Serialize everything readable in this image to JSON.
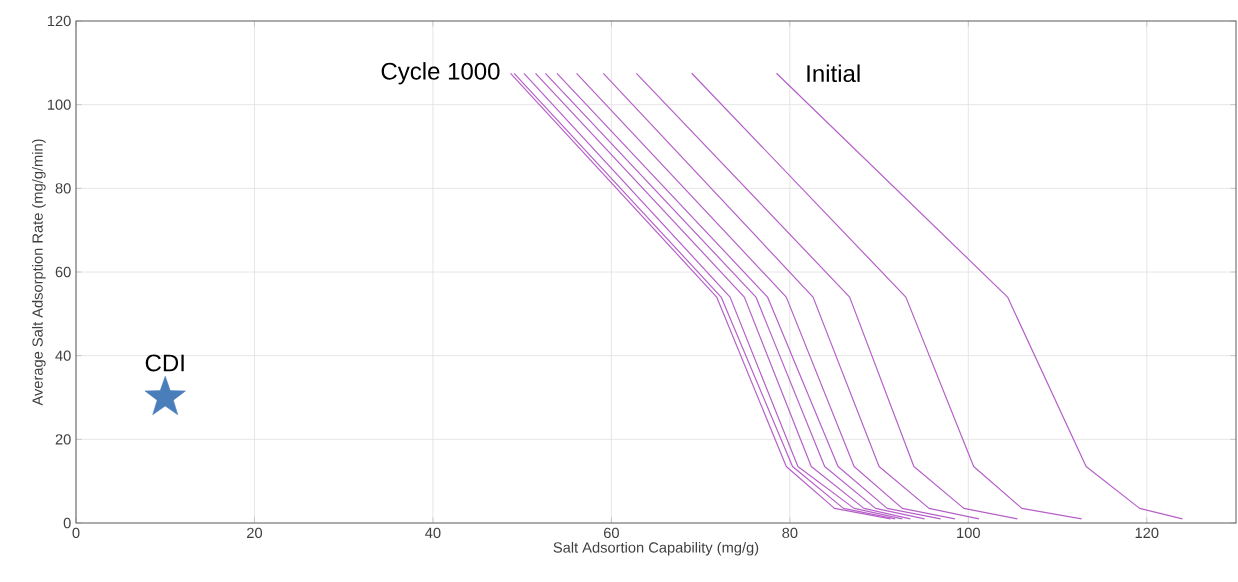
{
  "chart_data": {
    "type": "line",
    "xlabel": "Salt Adsortion Capability (mg/g)",
    "ylabel": "Average Salt Adsorption Rate (mg/g/min)",
    "xlim": [
      0,
      130
    ],
    "ylim": [
      0,
      120
    ],
    "xticks": [
      0,
      20,
      40,
      60,
      80,
      100,
      120
    ],
    "yticks": [
      0,
      20,
      40,
      60,
      80,
      100,
      120
    ],
    "grid": true,
    "annotations": [
      {
        "text": "Cycle 1000",
        "x": 48.7,
        "y": 107.5
      },
      {
        "text": "Initial",
        "x": 78.5,
        "y": 107.5
      }
    ],
    "series": [
      {
        "color": "#b660c8",
        "x": [
          48.7,
          71.8,
          79.6,
          85.0,
          91.3
        ],
        "values": [
          107.5,
          54,
          13.5,
          3.5,
          1
        ]
      },
      {
        "color": "#b660c8",
        "x": [
          49.1,
          72.3,
          80.3,
          86.0,
          91.8
        ],
        "values": [
          107.5,
          54,
          13.5,
          3.5,
          1
        ]
      },
      {
        "color": "#b660c8",
        "x": [
          50.2,
          73.3,
          80.9,
          87.2,
          92.6
        ],
        "values": [
          107.5,
          54,
          13.5,
          3.5,
          1
        ]
      },
      {
        "color": "#b660c8",
        "x": [
          51.5,
          74.9,
          82.4,
          88.3,
          93.5
        ],
        "values": [
          107.5,
          54,
          13.5,
          3.5,
          1
        ]
      },
      {
        "color": "#b660c8",
        "x": [
          52.6,
          76.2,
          83.9,
          89.6,
          95.1
        ],
        "values": [
          107.5,
          54,
          13.5,
          3.5,
          1
        ]
      },
      {
        "color": "#b660c8",
        "x": [
          53.9,
          77.5,
          85.4,
          90.9,
          96.9
        ],
        "values": [
          107.5,
          54,
          13.5,
          3.5,
          1
        ]
      },
      {
        "color": "#b660c8",
        "x": [
          56.1,
          79.6,
          87.2,
          92.6,
          98.5
        ],
        "values": [
          107.5,
          54,
          13.5,
          3.5,
          1
        ]
      },
      {
        "color": "#b660c8",
        "x": [
          59.1,
          82.6,
          90.0,
          95.6,
          101.2
        ],
        "values": [
          107.5,
          54,
          13.5,
          3.5,
          1
        ]
      },
      {
        "color": "#b660c8",
        "x": [
          62.8,
          86.7,
          93.9,
          99.5,
          105.5
        ],
        "values": [
          107.5,
          54,
          13.5,
          3.5,
          1
        ]
      },
      {
        "color": "#b660c8",
        "x": [
          69.0,
          93.0,
          100.6,
          106.0,
          112.7
        ],
        "values": [
          107.5,
          54,
          13.5,
          3.5,
          1
        ]
      },
      {
        "color": "#b660c8",
        "x": [
          78.5,
          104.4,
          113.2,
          119.2,
          124.0
        ],
        "values": [
          107.5,
          54,
          13.5,
          3.5,
          1
        ]
      },
      {
        "type": "scatter",
        "name": "CDI",
        "marker": "star",
        "color": "#4a7ebb",
        "x": [
          10
        ],
        "values": [
          30
        ]
      }
    ]
  }
}
